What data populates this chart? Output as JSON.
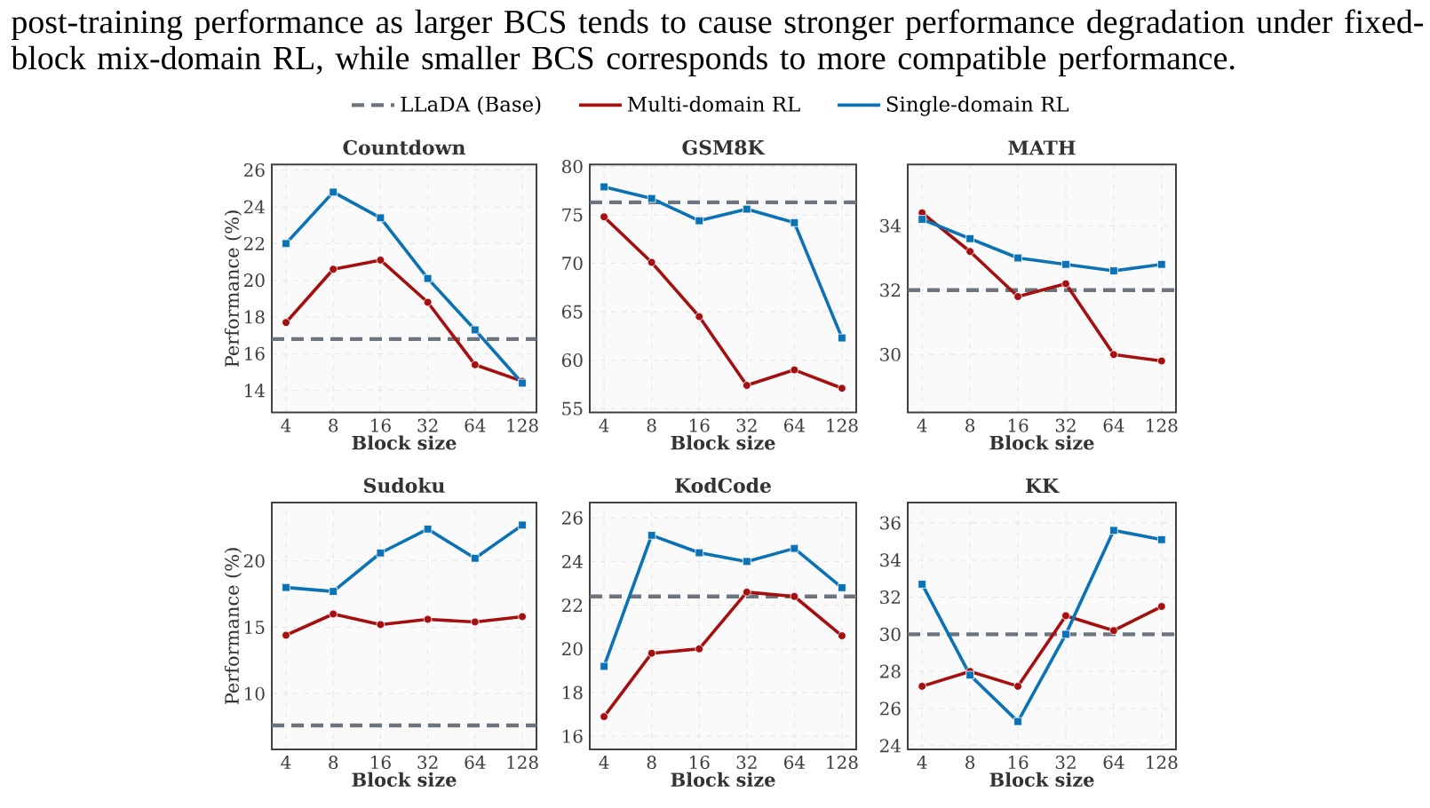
{
  "chart_data": [
    {
      "type": "line",
      "title": "Countdown",
      "xlabel": "Block size",
      "ylabel": "Performance (%)",
      "categories": [
        "4",
        "8",
        "16",
        "32",
        "64",
        "128"
      ],
      "ylim": [
        12.8,
        26.3
      ],
      "yticks": [
        14,
        16,
        18,
        20,
        22,
        24,
        26
      ],
      "grid": true,
      "legend": "top",
      "annotations": [
        "post-training performance as larger BCS tends to cause stronger performance degradation under fixed-block mix-domain RL, while smaller BCS corresponds to more compatible performance."
      ],
      "ref_lines": [
        {
          "axis": "y",
          "value": 16.8,
          "label": "LLaDA (Base)",
          "color": "#6c757d",
          "line_style": "dashed"
        }
      ],
      "series": [
        {
          "name": "Multi-domain RL",
          "color": "#a50f0f",
          "marker": "circle",
          "values": [
            17.7,
            20.6,
            21.1,
            18.8,
            15.4,
            14.5
          ]
        },
        {
          "name": "Single-domain RL",
          "color": "#0a72b5",
          "marker": "square",
          "values": [
            22.0,
            24.8,
            23.4,
            20.1,
            17.3,
            14.4
          ]
        }
      ]
    },
    {
      "type": "line",
      "title": "GSM8K",
      "xlabel": "Block size",
      "categories": [
        "4",
        "8",
        "16",
        "32",
        "64",
        "128"
      ],
      "ylim": [
        54.6,
        80.2
      ],
      "yticks": [
        55,
        60,
        65,
        70,
        75,
        80
      ],
      "grid": true,
      "ref_lines": [
        {
          "axis": "y",
          "value": 76.3,
          "color": "#6c757d",
          "line_style": "dashed"
        }
      ],
      "series": [
        {
          "color": "#a50f0f",
          "marker": "circle",
          "values": [
            74.8,
            70.1,
            64.5,
            57.4,
            59.0,
            57.1
          ]
        },
        {
          "color": "#0a72b5",
          "marker": "square",
          "values": [
            77.9,
            76.7,
            74.4,
            75.6,
            74.2,
            62.3
          ]
        }
      ]
    },
    {
      "type": "line",
      "title": "MATH",
      "xlabel": "Block size",
      "categories": [
        "4",
        "8",
        "16",
        "32",
        "64",
        "128"
      ],
      "ylim": [
        28.2,
        35.9
      ],
      "yticks": [
        30,
        32,
        34
      ],
      "grid": true,
      "ref_lines": [
        {
          "axis": "y",
          "value": 32.0,
          "color": "#6c757d",
          "line_style": "dashed"
        }
      ],
      "series": [
        {
          "color": "#a50f0f",
          "marker": "circle",
          "values": [
            34.4,
            33.2,
            31.8,
            32.2,
            30.0,
            29.8
          ]
        },
        {
          "color": "#0a72b5",
          "marker": "square",
          "values": [
            34.2,
            33.6,
            33.0,
            32.8,
            32.6,
            32.8
          ]
        }
      ]
    },
    {
      "type": "line",
      "title": "Sudoku",
      "xlabel": "Block size",
      "ylabel": "Performance (%)",
      "categories": [
        "4",
        "8",
        "16",
        "32",
        "64",
        "128"
      ],
      "ylim": [
        5.8,
        24.4
      ],
      "yticks": [
        10,
        15,
        20
      ],
      "grid": true,
      "ref_lines": [
        {
          "axis": "y",
          "value": 7.6,
          "color": "#6c757d",
          "line_style": "dashed"
        }
      ],
      "series": [
        {
          "color": "#a50f0f",
          "marker": "circle",
          "values": [
            14.4,
            16.0,
            15.2,
            15.6,
            15.4,
            15.8
          ]
        },
        {
          "color": "#0a72b5",
          "marker": "square",
          "values": [
            18.0,
            17.7,
            20.6,
            22.4,
            20.2,
            22.7
          ]
        }
      ]
    },
    {
      "type": "line",
      "title": "KodCode",
      "xlabel": "Block size",
      "categories": [
        "4",
        "8",
        "16",
        "32",
        "64",
        "128"
      ],
      "ylim": [
        15.4,
        26.7
      ],
      "yticks": [
        16,
        18,
        20,
        22,
        24,
        26
      ],
      "grid": true,
      "ref_lines": [
        {
          "axis": "y",
          "value": 22.4,
          "color": "#6c757d",
          "line_style": "dashed"
        }
      ],
      "series": [
        {
          "color": "#a50f0f",
          "marker": "circle",
          "values": [
            16.9,
            19.8,
            20.0,
            22.6,
            22.4,
            20.6
          ]
        },
        {
          "color": "#0a72b5",
          "marker": "square",
          "values": [
            19.2,
            25.2,
            24.4,
            24.0,
            24.6,
            22.8
          ]
        }
      ]
    },
    {
      "type": "line",
      "title": "KK",
      "xlabel": "Block size",
      "categories": [
        "4",
        "8",
        "16",
        "32",
        "64",
        "128"
      ],
      "ylim": [
        23.8,
        37.1
      ],
      "yticks": [
        24,
        26,
        28,
        30,
        32,
        34,
        36
      ],
      "grid": true,
      "ref_lines": [
        {
          "axis": "y",
          "value": 30.0,
          "color": "#6c757d",
          "line_style": "dashed"
        }
      ],
      "series": [
        {
          "color": "#a50f0f",
          "marker": "circle",
          "values": [
            27.2,
            28.0,
            27.2,
            31.0,
            30.2,
            31.5
          ]
        },
        {
          "color": "#0a72b5",
          "marker": "square",
          "values": [
            32.7,
            27.8,
            25.3,
            30.0,
            35.6,
            35.1
          ]
        }
      ]
    }
  ]
}
